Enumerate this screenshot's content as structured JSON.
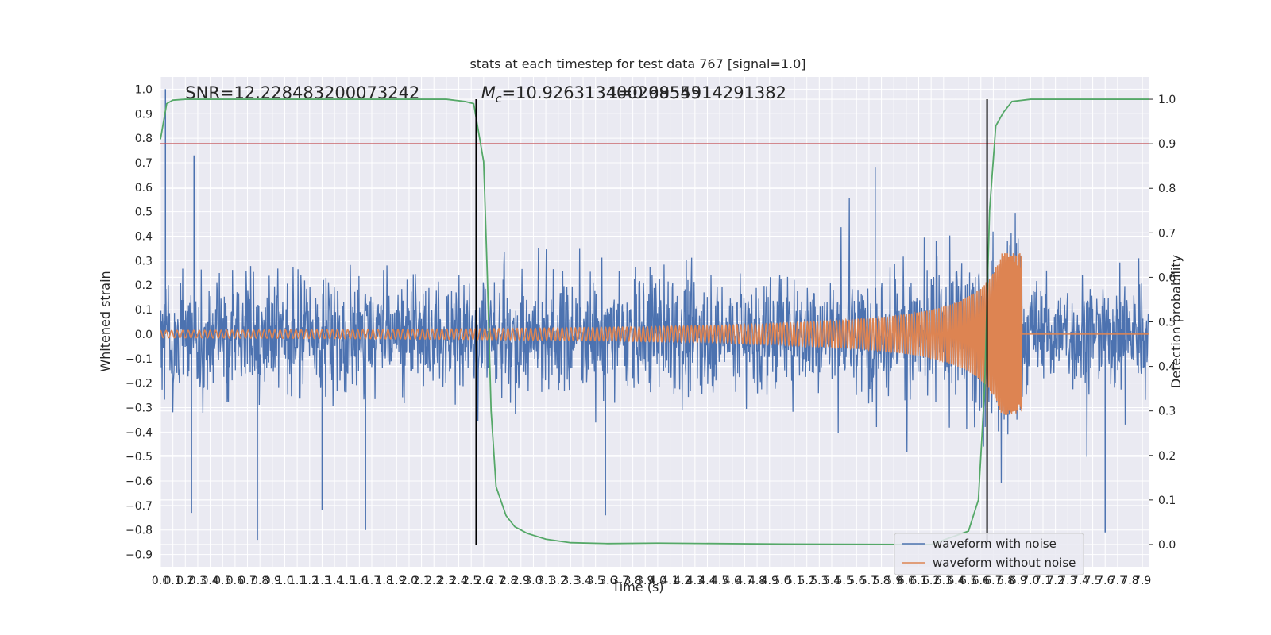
{
  "chart_data": {
    "type": "line",
    "title": "stats at each timestep for test data 767 [signal=1.0]",
    "xlabel": "Time (s)",
    "ylabel": "Whitened strain",
    "ylabel_right": "Detection probability",
    "xlim": [
      0.0,
      7.95
    ],
    "ylim": [
      -0.95,
      1.05
    ],
    "ylim_right": [
      -0.05,
      1.05
    ],
    "x_ticks": [
      0.0,
      0.1,
      0.2,
      0.3,
      0.4,
      0.5,
      0.6,
      0.7,
      0.8,
      0.9,
      1.0,
      1.1,
      1.2,
      1.3,
      1.4,
      1.5,
      1.6,
      1.7,
      1.8,
      1.9,
      2.0,
      2.1,
      2.2,
      2.3,
      2.4,
      2.5,
      2.6,
      2.7,
      2.8,
      2.9,
      3.0,
      3.1,
      3.2,
      3.3,
      3.4,
      3.5,
      3.6,
      3.7,
      3.8,
      3.9,
      4.0,
      4.1,
      4.2,
      4.3,
      4.4,
      4.5,
      4.6,
      4.7,
      4.8,
      4.9,
      5.0,
      5.1,
      5.2,
      5.3,
      5.4,
      5.5,
      5.6,
      5.7,
      5.8,
      5.9,
      6.0,
      6.1,
      6.2,
      6.3,
      6.4,
      6.5,
      6.6,
      6.7,
      6.8,
      6.9,
      7.0,
      7.1,
      7.2,
      7.3,
      7.4,
      7.5,
      7.6,
      7.7,
      7.8,
      7.9
    ],
    "x_tick_labels": [
      "0.0",
      "0.1",
      "0.2",
      "0.3",
      "0.4",
      "0.5",
      "0.6",
      "0.7",
      "0.8",
      "0.9",
      "1.0",
      "1.1",
      "1.2",
      "1.3",
      "1.4",
      "1.5",
      "1.6",
      "1.7",
      "1.8",
      "1.9",
      "2.0",
      "2.1",
      "2.2",
      "2.3",
      "2.4",
      "2.5",
      "2.6",
      "2.7",
      "2.8",
      "2.9",
      "3.0",
      "3.1",
      "3.2",
      "3.3",
      "3.4",
      "3.5",
      "3.6",
      "3.7",
      "3.8",
      "3.9",
      "4.0",
      "4.1",
      "4.2",
      "4.3",
      "4.4",
      "4.5",
      "4.6",
      "4.7",
      "4.8",
      "4.9",
      "5.0",
      "5.1",
      "5.2",
      "5.3",
      "5.4",
      "5.5",
      "5.6",
      "5.7",
      "5.8",
      "5.9",
      "6.0",
      "6.1",
      "6.2",
      "6.3",
      "6.4",
      "6.5",
      "6.6",
      "6.7",
      "6.8",
      "6.9",
      "7.0",
      "7.1",
      "7.2",
      "7.3",
      "7.4",
      "7.5",
      "7.6",
      "7.7",
      "7.8",
      "7.9"
    ],
    "y_ticks": [
      -0.9,
      -0.8,
      -0.7,
      -0.6,
      -0.5,
      -0.4,
      -0.3,
      -0.2,
      -0.1,
      0.0,
      0.1,
      0.2,
      0.3,
      0.4,
      0.5,
      0.6,
      0.7,
      0.8,
      0.9,
      1.0
    ],
    "y_tick_labels": [
      "−0.9",
      "−0.8",
      "−0.7",
      "−0.6",
      "−0.5",
      "−0.4",
      "−0.3",
      "−0.2",
      "−0.1",
      "0.0",
      "0.1",
      "0.2",
      "0.3",
      "0.4",
      "0.5",
      "0.6",
      "0.7",
      "0.8",
      "0.9",
      "1.0"
    ],
    "y_ticks_right": [
      0.0,
      0.1,
      0.2,
      0.3,
      0.4,
      0.5,
      0.6,
      0.7,
      0.8,
      0.9,
      1.0
    ],
    "y_tick_labels_right": [
      "0.0",
      "0.1",
      "0.2",
      "0.3",
      "0.4",
      "0.5",
      "0.6",
      "0.7",
      "0.8",
      "0.9",
      "1.0"
    ],
    "grid": true,
    "legend_position": "lower-right",
    "series": [
      {
        "name": "waveform with noise",
        "axis": "left",
        "color": "#4c72b0",
        "kind": "noise",
        "typical_amplitude": 0.25,
        "peak_values": [
          {
            "x": 0.04,
            "y": 1.0
          },
          {
            "x": 0.27,
            "y": 0.73
          },
          {
            "x": 0.25,
            "y": -0.73
          },
          {
            "x": 0.78,
            "y": -0.84
          },
          {
            "x": 1.3,
            "y": -0.72
          },
          {
            "x": 1.65,
            "y": -0.8
          },
          {
            "x": 3.58,
            "y": -0.74
          },
          {
            "x": 5.75,
            "y": 0.68
          },
          {
            "x": 7.6,
            "y": -0.81
          }
        ]
      },
      {
        "name": "waveform without noise",
        "axis": "left",
        "color": "#dd8452",
        "kind": "chirp",
        "start_amplitude": 0.015,
        "merger_time": 6.93,
        "peak_amplitude": 0.33,
        "after_merger_value": 0.0
      },
      {
        "name": "",
        "axis": "right",
        "color": "#55a868",
        "kind": "probability",
        "points": [
          [
            0.0,
            0.91
          ],
          [
            0.05,
            0.99
          ],
          [
            0.1,
            0.998
          ],
          [
            0.2,
            1.0
          ],
          [
            2.3,
            1.0
          ],
          [
            2.45,
            0.995
          ],
          [
            2.52,
            0.99
          ],
          [
            2.6,
            0.86
          ],
          [
            2.63,
            0.6
          ],
          [
            2.66,
            0.3
          ],
          [
            2.7,
            0.13
          ],
          [
            2.78,
            0.065
          ],
          [
            2.85,
            0.04
          ],
          [
            2.95,
            0.025
          ],
          [
            3.1,
            0.012
          ],
          [
            3.3,
            0.004
          ],
          [
            3.6,
            0.002
          ],
          [
            4.0,
            0.003
          ],
          [
            5.0,
            0.001
          ],
          [
            6.2,
            0.0
          ],
          [
            6.5,
            0.03
          ],
          [
            6.58,
            0.1
          ],
          [
            6.63,
            0.35
          ],
          [
            6.67,
            0.75
          ],
          [
            6.72,
            0.94
          ],
          [
            6.78,
            0.97
          ],
          [
            6.85,
            0.995
          ],
          [
            7.0,
            1.0
          ],
          [
            7.95,
            1.0
          ]
        ]
      },
      {
        "name": "",
        "axis": "right",
        "color": "#c44e52",
        "kind": "threshold",
        "value": 0.9
      }
    ],
    "vertical_lines": [
      {
        "x": 2.54,
        "color": "#000000"
      },
      {
        "x": 6.65,
        "color": "#000000"
      }
    ],
    "annotations": [
      {
        "text": "SNR=12.228483200073242",
        "x": 0.2
      },
      {
        "text": "=10.926313400268555",
        "math_prefix": "M",
        "math_sub": "c",
        "x": 2.58
      },
      {
        "text": "1=0.9954914291382",
        "x": 3.6
      }
    ]
  }
}
